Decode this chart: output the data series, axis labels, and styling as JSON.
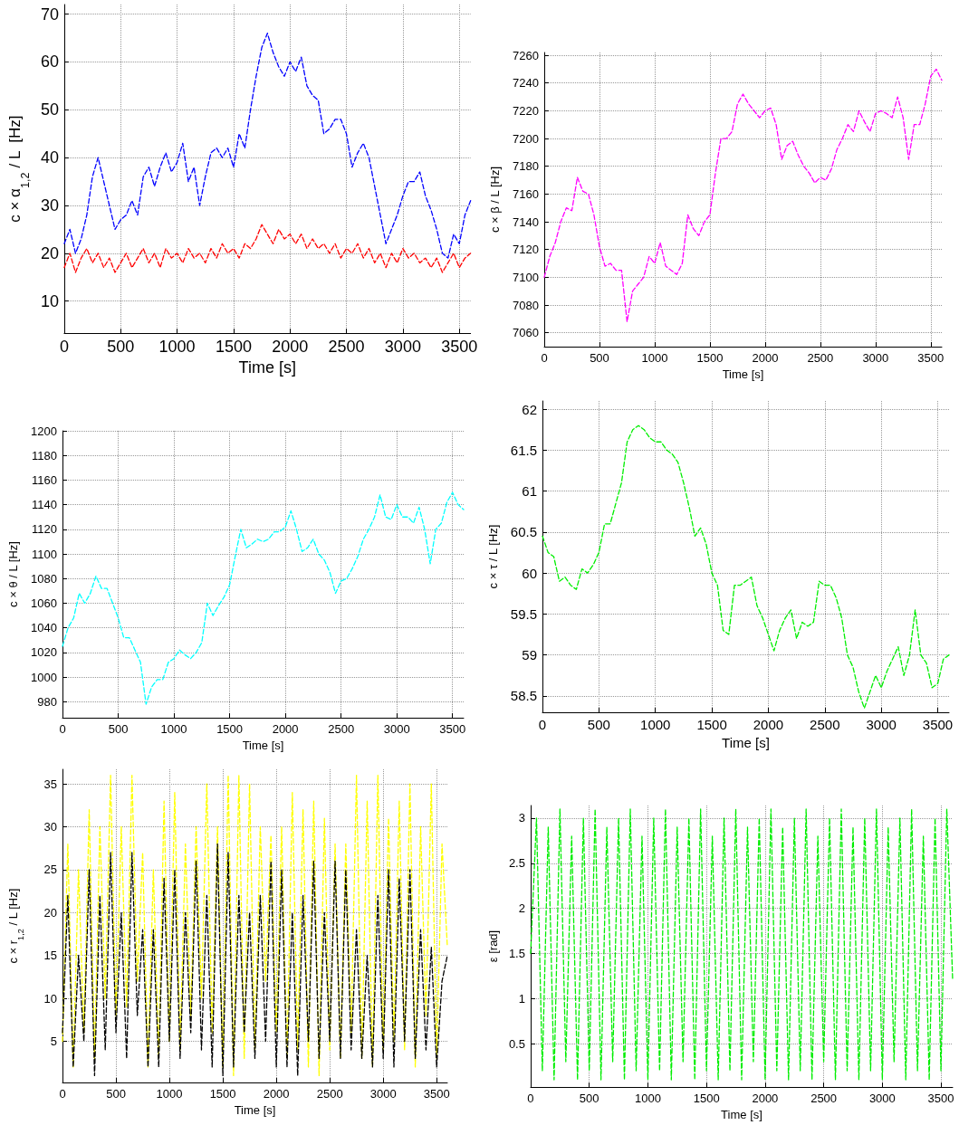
{
  "chart_data": [
    {
      "type": "line",
      "ylabel": "c × α$_{1,2}$ / L  [Hz]",
      "xlabel": "Time [s]",
      "xlim": [
        0,
        3600
      ],
      "xticks": [
        0,
        500,
        1000,
        1500,
        2000,
        2500,
        3000,
        3500
      ],
      "ylim": [
        3.3,
        72
      ],
      "yticks": [
        10,
        20,
        30,
        40,
        50,
        60,
        70
      ],
      "grid": true,
      "marker": "none",
      "line_style": "dashed",
      "x": [
        0,
        50,
        100,
        150,
        200,
        250,
        300,
        350,
        400,
        450,
        500,
        550,
        600,
        650,
        700,
        750,
        800,
        850,
        900,
        950,
        1000,
        1050,
        1100,
        1150,
        1200,
        1250,
        1300,
        1350,
        1400,
        1450,
        1500,
        1550,
        1600,
        1650,
        1700,
        1750,
        1800,
        1850,
        1900,
        1950,
        2000,
        2050,
        2100,
        2150,
        2200,
        2250,
        2300,
        2350,
        2400,
        2450,
        2500,
        2550,
        2600,
        2650,
        2700,
        2750,
        2800,
        2850,
        2900,
        2950,
        3000,
        3050,
        3100,
        3150,
        3200,
        3250,
        3300,
        3350,
        3400,
        3450,
        3500,
        3550,
        3600
      ],
      "series": [
        {
          "color": "#0000ff",
          "values": [
            22,
            25,
            20,
            23,
            28,
            36,
            40,
            35,
            30,
            25,
            27,
            28,
            31,
            28,
            36,
            38,
            34,
            38,
            41,
            37,
            39,
            43,
            35,
            38,
            30,
            36,
            41,
            42,
            40,
            42,
            38,
            45,
            42,
            50,
            57,
            63,
            66,
            62,
            59,
            57,
            60,
            58,
            61,
            55,
            53,
            52,
            45,
            46,
            48,
            48,
            45,
            38,
            41,
            43,
            40,
            34,
            28,
            22,
            25,
            28,
            32,
            35,
            35,
            37,
            32,
            29,
            25,
            20,
            19,
            24,
            22,
            28,
            31
          ]
        },
        {
          "color": "#ff0000",
          "values": [
            17,
            20,
            16,
            19,
            21,
            18,
            20,
            17,
            19,
            16,
            18,
            20,
            17,
            19,
            21,
            18,
            20,
            17,
            21,
            19,
            20,
            18,
            21,
            19,
            20,
            18,
            21,
            19,
            22,
            20,
            21,
            19,
            22,
            21,
            23,
            26,
            24,
            22,
            25,
            23,
            24,
            22,
            24,
            21,
            23,
            21,
            22,
            20,
            22,
            19,
            21,
            20,
            22,
            19,
            21,
            18,
            20,
            17,
            20,
            18,
            21,
            19,
            20,
            18,
            19,
            17,
            19,
            16,
            18,
            20,
            17,
            19,
            20
          ]
        }
      ]
    },
    {
      "type": "line",
      "ylabel": "c × β / L [Hz]",
      "xlabel": "Time [s]",
      "xlim": [
        0,
        3600
      ],
      "xticks": [
        0,
        500,
        1000,
        1500,
        2000,
        2500,
        3000,
        3500
      ],
      "ylim": [
        7050,
        7262
      ],
      "yticks": [
        7060,
        7080,
        7100,
        7120,
        7140,
        7160,
        7180,
        7200,
        7220,
        7240,
        7260
      ],
      "grid": true,
      "marker": "none",
      "line_style": "dashed",
      "x": [
        0,
        50,
        100,
        150,
        200,
        250,
        300,
        350,
        400,
        450,
        500,
        550,
        600,
        650,
        700,
        750,
        800,
        850,
        900,
        950,
        1000,
        1050,
        1100,
        1150,
        1200,
        1250,
        1300,
        1350,
        1400,
        1450,
        1500,
        1550,
        1600,
        1650,
        1700,
        1750,
        1800,
        1850,
        1900,
        1950,
        2000,
        2050,
        2100,
        2150,
        2200,
        2250,
        2300,
        2350,
        2400,
        2450,
        2500,
        2550,
        2600,
        2650,
        2700,
        2750,
        2800,
        2850,
        2900,
        2950,
        3000,
        3050,
        3100,
        3150,
        3200,
        3250,
        3300,
        3350,
        3400,
        3450,
        3500,
        3550,
        3600
      ],
      "series": [
        {
          "color": "#ff00ff",
          "values": [
            7100,
            7115,
            7125,
            7140,
            7150,
            7148,
            7172,
            7162,
            7160,
            7145,
            7122,
            7108,
            7110,
            7105,
            7105,
            7068,
            7090,
            7095,
            7100,
            7115,
            7110,
            7125,
            7108,
            7105,
            7102,
            7110,
            7145,
            7135,
            7130,
            7140,
            7145,
            7175,
            7200,
            7200,
            7205,
            7225,
            7232,
            7225,
            7220,
            7215,
            7220,
            7222,
            7210,
            7185,
            7195,
            7198,
            7188,
            7180,
            7175,
            7168,
            7172,
            7170,
            7178,
            7192,
            7200,
            7210,
            7205,
            7220,
            7212,
            7205,
            7218,
            7220,
            7218,
            7215,
            7230,
            7215,
            7185,
            7210,
            7210,
            7225,
            7245,
            7250,
            7242
          ]
        }
      ]
    },
    {
      "type": "line",
      "ylabel": "c × θ / L [Hz]",
      "xlabel": "Time [s]",
      "xlim": [
        0,
        3600
      ],
      "xticks": [
        0,
        500,
        1000,
        1500,
        2000,
        2500,
        3000,
        3500
      ],
      "ylim": [
        967,
        1200
      ],
      "yticks": [
        980,
        1000,
        1020,
        1040,
        1060,
        1080,
        1100,
        1120,
        1140,
        1160,
        1180,
        1200
      ],
      "grid": true,
      "marker": "none",
      "line_style": "dashed",
      "x": [
        0,
        50,
        100,
        150,
        200,
        250,
        300,
        350,
        400,
        450,
        500,
        550,
        600,
        650,
        700,
        750,
        800,
        850,
        900,
        950,
        1000,
        1050,
        1100,
        1150,
        1200,
        1250,
        1300,
        1350,
        1400,
        1450,
        1500,
        1550,
        1600,
        1650,
        1700,
        1750,
        1800,
        1850,
        1900,
        1950,
        2000,
        2050,
        2100,
        2150,
        2200,
        2250,
        2300,
        2350,
        2400,
        2450,
        2500,
        2550,
        2600,
        2650,
        2700,
        2750,
        2800,
        2850,
        2900,
        2950,
        3000,
        3050,
        3100,
        3150,
        3200,
        3250,
        3300,
        3350,
        3400,
        3450,
        3500,
        3550,
        3600
      ],
      "series": [
        {
          "color": "#00ffff",
          "values": [
            1025,
            1040,
            1048,
            1068,
            1060,
            1068,
            1082,
            1072,
            1072,
            1060,
            1048,
            1032,
            1032,
            1022,
            1012,
            978,
            992,
            998,
            998,
            1012,
            1015,
            1022,
            1018,
            1015,
            1020,
            1028,
            1060,
            1050,
            1058,
            1065,
            1075,
            1098,
            1120,
            1105,
            1108,
            1112,
            1110,
            1112,
            1118,
            1118,
            1122,
            1135,
            1120,
            1102,
            1105,
            1112,
            1100,
            1095,
            1085,
            1068,
            1078,
            1080,
            1088,
            1098,
            1112,
            1120,
            1130,
            1148,
            1130,
            1128,
            1140,
            1130,
            1130,
            1125,
            1138,
            1120,
            1092,
            1120,
            1125,
            1142,
            1150,
            1140,
            1136
          ]
        }
      ]
    },
    {
      "type": "line",
      "ylabel": "c × τ / L [Hz]",
      "xlabel": "Time [s]",
      "xlim": [
        0,
        3600
      ],
      "xticks": [
        0,
        500,
        1000,
        1500,
        2000,
        2500,
        3000,
        3500
      ],
      "ylim": [
        58.3,
        62.1
      ],
      "yticks": [
        58.5,
        59,
        59.5,
        60,
        60.5,
        61,
        61.5,
        62
      ],
      "grid": true,
      "marker": "none",
      "line_style": "dashed",
      "x": [
        0,
        50,
        100,
        150,
        200,
        250,
        300,
        350,
        400,
        450,
        500,
        550,
        600,
        650,
        700,
        750,
        800,
        850,
        900,
        950,
        1000,
        1050,
        1100,
        1150,
        1200,
        1250,
        1300,
        1350,
        1400,
        1450,
        1500,
        1550,
        1600,
        1650,
        1700,
        1750,
        1800,
        1850,
        1900,
        1950,
        2000,
        2050,
        2100,
        2150,
        2200,
        2250,
        2300,
        2350,
        2400,
        2450,
        2500,
        2550,
        2600,
        2650,
        2700,
        2750,
        2800,
        2850,
        2900,
        2950,
        3000,
        3050,
        3100,
        3150,
        3200,
        3250,
        3300,
        3350,
        3400,
        3450,
        3500,
        3550,
        3600
      ],
      "series": [
        {
          "color": "#00ee00",
          "values": [
            60.45,
            60.25,
            60.2,
            59.9,
            59.95,
            59.85,
            59.8,
            60.05,
            60.0,
            60.1,
            60.25,
            60.6,
            60.6,
            60.85,
            61.1,
            61.6,
            61.75,
            61.8,
            61.75,
            61.65,
            61.6,
            61.6,
            61.5,
            61.45,
            61.35,
            61.1,
            60.8,
            60.45,
            60.55,
            60.35,
            60.0,
            59.85,
            59.3,
            59.25,
            59.85,
            59.85,
            59.9,
            59.95,
            59.6,
            59.45,
            59.25,
            59.05,
            59.3,
            59.45,
            59.55,
            59.2,
            59.4,
            59.35,
            59.4,
            59.9,
            59.85,
            59.85,
            59.7,
            59.45,
            59.0,
            58.85,
            58.55,
            58.35,
            58.55,
            58.75,
            58.6,
            58.8,
            58.95,
            59.1,
            58.75,
            59.0,
            59.55,
            59.0,
            58.9,
            58.6,
            58.65,
            58.95,
            59.0
          ]
        }
      ]
    },
    {
      "type": "line",
      "ylabel": "c × r$_{1,2}$ / L [Hz]",
      "xlabel": "Time [s]",
      "xlim": [
        0,
        3600
      ],
      "xticks": [
        0,
        500,
        1000,
        1500,
        2000,
        2500,
        3000,
        3500
      ],
      "ylim": [
        0.2,
        36.7
      ],
      "yticks": [
        5,
        10,
        15,
        20,
        25,
        30,
        35
      ],
      "grid": true,
      "marker": "none",
      "line_style": "dashed",
      "x": [
        0,
        50,
        100,
        150,
        200,
        250,
        300,
        350,
        400,
        450,
        500,
        550,
        600,
        650,
        700,
        750,
        800,
        850,
        900,
        950,
        1000,
        1050,
        1100,
        1150,
        1200,
        1250,
        1300,
        1350,
        1400,
        1450,
        1500,
        1550,
        1600,
        1650,
        1700,
        1750,
        1800,
        1850,
        1900,
        1950,
        2000,
        2050,
        2100,
        2150,
        2200,
        2250,
        2300,
        2350,
        2400,
        2450,
        2500,
        2550,
        2600,
        2650,
        2700,
        2750,
        2800,
        2850,
        2900,
        2950,
        3000,
        3050,
        3100,
        3150,
        3200,
        3250,
        3300,
        3350,
        3400,
        3450,
        3500,
        3550,
        3600
      ],
      "series": [
        {
          "color": "#ffff00",
          "values": [
            5,
            28,
            2,
            25,
            6,
            32,
            3,
            30,
            10,
            36,
            8,
            30,
            9,
            36,
            12,
            27,
            2,
            25,
            3,
            33,
            5,
            34,
            4,
            28,
            8,
            30,
            10,
            35,
            6,
            30,
            2,
            36,
            1,
            36,
            3,
            35,
            4,
            30,
            12,
            29,
            6,
            30,
            3,
            34,
            4,
            32,
            2,
            33,
            1,
            31,
            4,
            28,
            3,
            28,
            6,
            36,
            3,
            33,
            2,
            36,
            4,
            31,
            5,
            33,
            4,
            35,
            2,
            30,
            8,
            35,
            3,
            28,
            16
          ]
        },
        {
          "color": "#000000",
          "values": [
            6,
            22,
            2,
            15,
            5,
            25,
            1,
            22,
            4,
            27,
            6,
            20,
            3,
            27,
            8,
            18,
            2,
            18,
            2,
            24,
            5,
            25,
            3,
            20,
            6,
            26,
            4,
            22,
            2,
            28,
            1,
            27,
            2,
            22,
            6,
            20,
            3,
            22,
            5,
            26,
            2,
            25,
            2,
            20,
            1,
            22,
            5,
            26,
            3,
            20,
            5,
            26,
            3,
            25,
            4,
            18,
            3,
            15,
            2,
            22,
            3,
            25,
            2,
            24,
            5,
            25,
            3,
            18,
            4,
            16,
            2,
            12,
            15
          ]
        }
      ]
    },
    {
      "type": "line",
      "ylabel": "ε [rad]",
      "xlabel": "Time [s]",
      "xlim": [
        0,
        3600
      ],
      "xticks": [
        0,
        500,
        1000,
        1500,
        2000,
        2500,
        3000,
        3500
      ],
      "ylim": [
        0.02,
        3.14
      ],
      "yticks": [
        0.5,
        1,
        1.5,
        2,
        2.5,
        3
      ],
      "grid": true,
      "marker": "none",
      "line_style": "dashed",
      "x": [
        0,
        50,
        100,
        150,
        200,
        250,
        300,
        350,
        400,
        450,
        500,
        550,
        600,
        650,
        700,
        750,
        800,
        850,
        900,
        950,
        1000,
        1050,
        1100,
        1150,
        1200,
        1250,
        1300,
        1350,
        1400,
        1450,
        1500,
        1550,
        1600,
        1650,
        1700,
        1750,
        1800,
        1850,
        1900,
        1950,
        2000,
        2050,
        2100,
        2150,
        2200,
        2250,
        2300,
        2350,
        2400,
        2450,
        2500,
        2550,
        2600,
        2650,
        2700,
        2750,
        2800,
        2850,
        2900,
        2950,
        3000,
        3050,
        3100,
        3150,
        3200,
        3250,
        3300,
        3350,
        3400,
        3450,
        3500,
        3550,
        3600
      ],
      "series": [
        {
          "color": "#00ee00",
          "values": [
            1.5,
            3.0,
            0.2,
            2.9,
            0.1,
            3.1,
            0.3,
            2.8,
            0.1,
            3.0,
            0.2,
            3.1,
            0.1,
            2.9,
            0.3,
            3.0,
            0.1,
            3.1,
            0.2,
            2.8,
            0.1,
            3.0,
            0.2,
            3.1,
            0.1,
            2.9,
            0.3,
            3.0,
            0.1,
            3.1,
            0.2,
            2.8,
            0.1,
            3.0,
            0.2,
            3.1,
            0.1,
            2.9,
            0.3,
            3.0,
            0.1,
            3.1,
            0.2,
            2.9,
            0.1,
            3.0,
            0.2,
            3.1,
            0.1,
            2.8,
            0.3,
            3.0,
            0.1,
            3.1,
            0.2,
            2.9,
            0.1,
            3.0,
            0.2,
            3.1,
            0.1,
            2.9,
            0.3,
            3.0,
            0.1,
            3.1,
            0.2,
            2.8,
            0.1,
            3.0,
            0.2,
            3.1,
            1.2
          ]
        }
      ]
    }
  ]
}
